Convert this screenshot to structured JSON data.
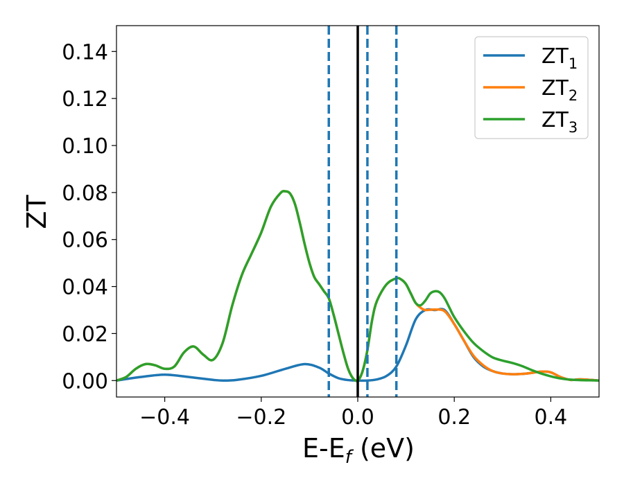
{
  "chart_data": {
    "type": "line",
    "xlabel": "E-E",
    "xlabel_sub": "f",
    "xlabel_unit": " (eV)",
    "ylabel": "ZT",
    "xlim": [
      -0.5,
      0.5
    ],
    "ylim": [
      -0.007,
      0.151
    ],
    "xticks": [
      -0.4,
      -0.2,
      0.0,
      0.2,
      0.4
    ],
    "xtick_labels": [
      "−0.4",
      "−0.2",
      "0.0",
      "0.2",
      "0.4"
    ],
    "yticks": [
      0.0,
      0.02,
      0.04,
      0.06,
      0.08,
      0.1,
      0.12,
      0.14
    ],
    "ytick_labels": [
      "0.00",
      "0.02",
      "0.04",
      "0.06",
      "0.08",
      "0.10",
      "0.12",
      "0.14"
    ],
    "grid": false,
    "legend_position": "top-right",
    "vertical_lines": [
      {
        "x": -0.06,
        "style": "dashed",
        "color": "#1f77b4"
      },
      {
        "x": 0.0,
        "style": "solid",
        "color": "#000000"
      },
      {
        "x": 0.02,
        "style": "dashed",
        "color": "#1f77b4"
      },
      {
        "x": 0.08,
        "style": "dashed",
        "color": "#1f77b4"
      }
    ],
    "series": [
      {
        "name": "ZT",
        "sub": "1",
        "color": "#1f77b4",
        "x": [
          -0.5,
          -0.45,
          -0.4,
          -0.35,
          -0.3,
          -0.28,
          -0.25,
          -0.2,
          -0.15,
          -0.11,
          -0.08,
          -0.06,
          -0.04,
          -0.02,
          0.0,
          0.02,
          0.04,
          0.06,
          0.08,
          0.1,
          0.12,
          0.14,
          0.16,
          0.18,
          0.2,
          0.22,
          0.24,
          0.26,
          0.28,
          0.3,
          0.32,
          0.35,
          0.38,
          0.4,
          0.42,
          0.44,
          0.46,
          0.48,
          0.5
        ],
        "y": [
          0.0,
          0.0015,
          0.0025,
          0.0015,
          0.0003,
          0.0,
          0.0003,
          0.002,
          0.005,
          0.007,
          0.0055,
          0.003,
          0.001,
          0.0002,
          0.0,
          0.0,
          0.0005,
          0.002,
          0.006,
          0.015,
          0.026,
          0.03,
          0.03,
          0.03,
          0.024,
          0.017,
          0.01,
          0.006,
          0.004,
          0.003,
          0.0027,
          0.003,
          0.0038,
          0.0035,
          0.0015,
          0.0003,
          0.0005,
          0.0003,
          0.0
        ]
      },
      {
        "name": "ZT",
        "sub": "2",
        "color": "#ff7f0e",
        "x": [
          -0.5,
          -0.48,
          -0.46,
          -0.44,
          -0.42,
          -0.4,
          -0.38,
          -0.36,
          -0.34,
          -0.32,
          -0.3,
          -0.28,
          -0.26,
          -0.24,
          -0.22,
          -0.2,
          -0.18,
          -0.16,
          -0.15,
          -0.14,
          -0.13,
          -0.12,
          -0.11,
          -0.1,
          -0.09,
          -0.08,
          -0.07,
          -0.06,
          -0.05,
          -0.04,
          -0.03,
          -0.02,
          -0.01,
          0.0,
          0.01,
          0.02,
          0.03,
          0.04,
          0.06,
          0.08,
          0.09,
          0.1,
          0.11,
          0.12,
          0.13,
          0.14,
          0.16,
          0.18,
          0.2,
          0.22,
          0.24,
          0.26,
          0.28,
          0.3,
          0.32,
          0.35,
          0.38,
          0.4,
          0.42,
          0.44,
          0.46,
          0.48,
          0.5
        ],
        "y": [
          0.0,
          0.0015,
          0.005,
          0.007,
          0.0065,
          0.005,
          0.006,
          0.012,
          0.0145,
          0.011,
          0.0088,
          0.016,
          0.032,
          0.045,
          0.054,
          0.063,
          0.074,
          0.0798,
          0.0805,
          0.0795,
          0.075,
          0.067,
          0.058,
          0.05,
          0.044,
          0.041,
          0.038,
          0.035,
          0.028,
          0.02,
          0.012,
          0.005,
          0.001,
          0.0,
          0.004,
          0.013,
          0.026,
          0.034,
          0.041,
          0.0435,
          0.043,
          0.041,
          0.037,
          0.033,
          0.031,
          0.03,
          0.0302,
          0.0295,
          0.024,
          0.017,
          0.0105,
          0.0065,
          0.004,
          0.003,
          0.0027,
          0.003,
          0.0038,
          0.0035,
          0.0015,
          0.0003,
          0.0005,
          0.0003,
          0.0
        ]
      },
      {
        "name": "ZT",
        "sub": "3",
        "color": "#2ca02c",
        "x": [
          -0.5,
          -0.48,
          -0.46,
          -0.44,
          -0.42,
          -0.4,
          -0.38,
          -0.36,
          -0.34,
          -0.32,
          -0.3,
          -0.28,
          -0.26,
          -0.24,
          -0.22,
          -0.2,
          -0.18,
          -0.16,
          -0.15,
          -0.14,
          -0.13,
          -0.12,
          -0.11,
          -0.1,
          -0.09,
          -0.08,
          -0.07,
          -0.06,
          -0.05,
          -0.04,
          -0.03,
          -0.02,
          -0.01,
          0.0,
          0.01,
          0.02,
          0.03,
          0.04,
          0.06,
          0.08,
          0.09,
          0.1,
          0.11,
          0.12,
          0.13,
          0.14,
          0.15,
          0.16,
          0.17,
          0.18,
          0.19,
          0.2,
          0.22,
          0.24,
          0.26,
          0.28,
          0.3,
          0.32,
          0.34,
          0.36,
          0.38,
          0.4,
          0.42,
          0.44,
          0.46,
          0.48,
          0.5
        ],
        "y": [
          0.0,
          0.0015,
          0.005,
          0.007,
          0.0065,
          0.005,
          0.006,
          0.012,
          0.0145,
          0.011,
          0.0088,
          0.016,
          0.032,
          0.045,
          0.054,
          0.063,
          0.074,
          0.0798,
          0.0805,
          0.0795,
          0.075,
          0.067,
          0.058,
          0.05,
          0.044,
          0.041,
          0.038,
          0.035,
          0.028,
          0.02,
          0.012,
          0.005,
          0.001,
          0.0,
          0.004,
          0.013,
          0.026,
          0.034,
          0.041,
          0.0435,
          0.043,
          0.041,
          0.037,
          0.033,
          0.032,
          0.034,
          0.037,
          0.038,
          0.0375,
          0.035,
          0.031,
          0.027,
          0.021,
          0.016,
          0.0125,
          0.0098,
          0.0085,
          0.0075,
          0.0062,
          0.0045,
          0.003,
          0.0018,
          0.0009,
          0.0004,
          0.0002,
          0.0001,
          0.0
        ]
      }
    ]
  }
}
